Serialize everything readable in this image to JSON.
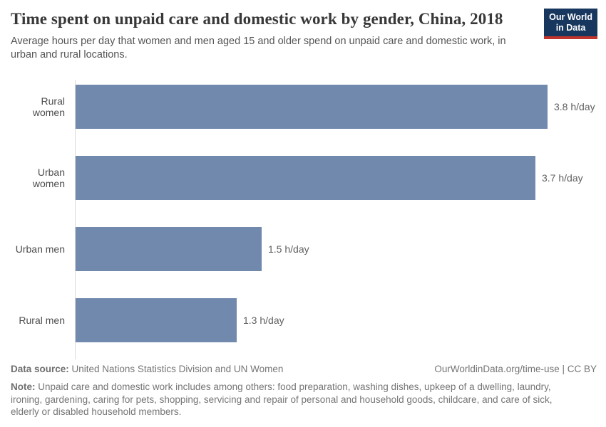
{
  "header": {
    "title": "Time spent on unpaid care and domestic work by gender, China, 2018",
    "subtitle": "Average hours per day that women and men aged 15 and older spend on unpaid care and domestic work, in urban and rural locations."
  },
  "logo": {
    "line1": "Our World",
    "line2": "in Data"
  },
  "chart_data": {
    "type": "bar",
    "orientation": "horizontal",
    "title": "Time spent on unpaid care and domestic work by gender, China, 2018",
    "categories": [
      "Rural women",
      "Urban women",
      "Urban men",
      "Rural men"
    ],
    "values": [
      3.8,
      3.7,
      1.5,
      1.3
    ],
    "unit": "h/day",
    "value_labels": [
      "3.8 h/day",
      "3.7 h/day",
      "1.5 h/day",
      "1.3 h/day"
    ],
    "xlim": [
      0,
      3.8
    ],
    "grid": false,
    "legend": "none",
    "bar_color": "#7189AD"
  },
  "footer": {
    "datasource_label": "Data source:",
    "datasource_value": " United Nations Statistics Division and UN Women",
    "origin_link": "OurWorldinData.org/time-use | CC BY",
    "note_label": "Note:",
    "note_text": " Unpaid care and domestic work includes among others: food preparation, washing dishes, upkeep of a dwelling, laundry, ironing, gardening, caring for pets, shopping, servicing and repair of personal and household goods, childcare, and care of sick, elderly or disabled household members."
  },
  "colors": {
    "bar": "#7189AD",
    "axis_line": "#DADADA",
    "logo_bg": "#17375E",
    "logo_red": "#C2342C",
    "title_text": "#383838",
    "subtitle_text": "#555555",
    "footer_text": "#757575"
  }
}
